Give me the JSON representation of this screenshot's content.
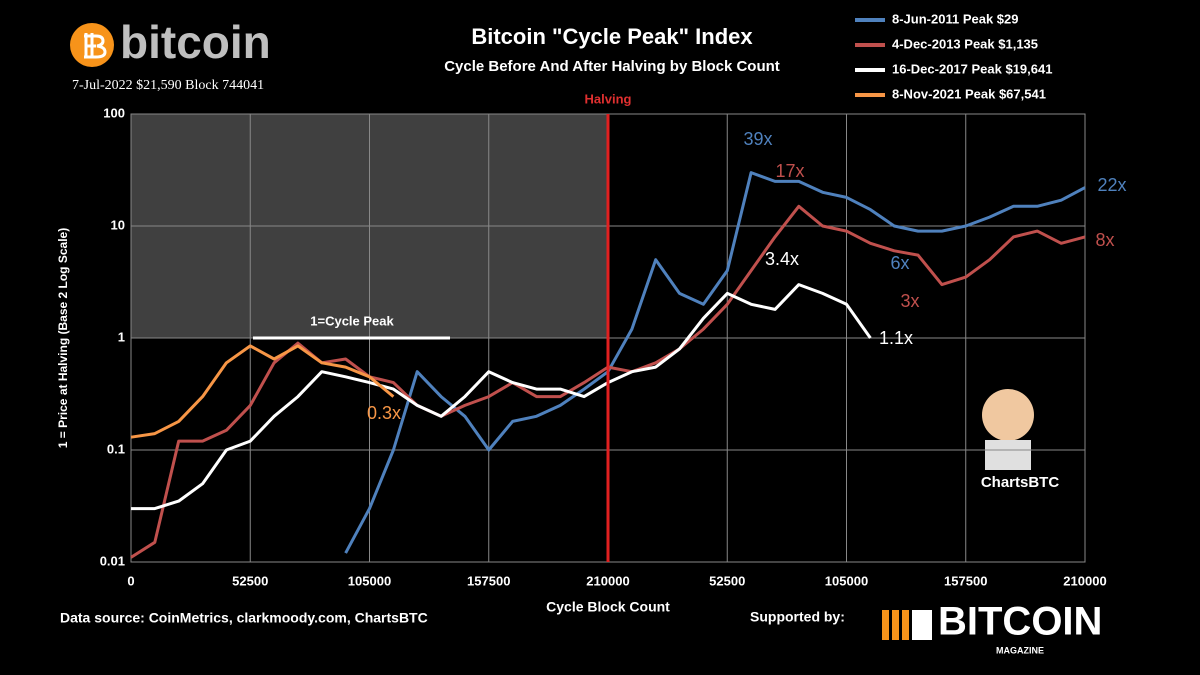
{
  "brand": {
    "name": "bitcoin",
    "subline": "7-Jul-2022 $21,590 Block 744041"
  },
  "chart_data": {
    "type": "line",
    "title": "Bitcoin \"Cycle Peak\" Index",
    "subtitle": "Cycle Before And After Halving by Block Count",
    "xlabel": "Cycle Block Count",
    "ylabel": "1 = Price at Halving (Base 2 Log Scale)",
    "log_y": true,
    "grid": true,
    "legend": "top-right",
    "halving_label": "Halving",
    "peak_label": "1=Cycle Peak",
    "annotations": [
      "39x",
      "17x",
      "22x",
      "6x",
      "3.4x",
      "3x",
      "8x",
      "1.1x",
      "0.3x"
    ],
    "xlim": [
      0,
      420000
    ],
    "ylim": [
      0.01,
      100
    ],
    "xticks": [
      0,
      52500,
      105000,
      157500,
      210000,
      {
        "value": 262500,
        "label": "52500"
      },
      {
        "value": 315000,
        "label": "105000"
      },
      {
        "value": 367500,
        "label": "157500"
      },
      {
        "value": 420000,
        "label": "210000"
      }
    ],
    "yticks": [
      0.01,
      0.1,
      1,
      10,
      100
    ],
    "x": [
      0,
      10500,
      21000,
      31500,
      42000,
      52500,
      63000,
      73500,
      84000,
      94500,
      105000,
      115500,
      126000,
      136500,
      147000,
      157500,
      168000,
      178500,
      189000,
      199500,
      210000,
      220500,
      231000,
      241500,
      252000,
      262500,
      273000,
      283500,
      294000,
      304500,
      315000,
      325500,
      336000,
      346500,
      357000,
      367500,
      378000,
      388500,
      399000,
      409500,
      420000
    ],
    "series": [
      {
        "name": "8-Jun-2011 Peak $29",
        "color": "#4f81bd",
        "values": [
          null,
          null,
          null,
          null,
          null,
          null,
          null,
          null,
          null,
          0.012,
          0.03,
          0.1,
          0.5,
          0.3,
          0.2,
          0.1,
          0.18,
          0.2,
          0.25,
          0.35,
          0.5,
          1.2,
          5,
          2.5,
          2,
          4,
          30,
          25,
          25,
          20,
          18,
          14,
          10,
          9,
          9,
          10,
          12,
          15,
          15,
          17,
          22
        ]
      },
      {
        "name": "4-Dec-2013 Peak $1,135",
        "color": "#c0504d",
        "values": [
          0.011,
          0.015,
          0.12,
          0.12,
          0.15,
          0.25,
          0.6,
          0.9,
          0.6,
          0.65,
          0.45,
          0.4,
          0.25,
          0.2,
          0.25,
          0.3,
          0.4,
          0.3,
          0.3,
          0.4,
          0.55,
          0.5,
          0.6,
          0.8,
          1.2,
          2,
          4,
          8,
          15,
          10,
          9,
          7,
          6,
          5.5,
          3,
          3.5,
          5,
          8,
          9,
          7,
          8
        ]
      },
      {
        "name": "16-Dec-2017 Peak $19,641",
        "color": "#ffffff",
        "values": [
          0.03,
          0.03,
          0.035,
          0.05,
          0.1,
          0.12,
          0.2,
          0.3,
          0.5,
          0.45,
          0.4,
          0.35,
          0.25,
          0.2,
          0.3,
          0.5,
          0.4,
          0.35,
          0.35,
          0.3,
          0.4,
          0.5,
          0.55,
          0.8,
          1.5,
          2.5,
          2,
          1.8,
          3,
          2.5,
          2,
          1,
          null,
          null,
          null,
          null,
          null,
          null,
          null,
          null,
          null
        ]
      },
      {
        "name": "8-Nov-2021 Peak $67,541",
        "color": "#f79646",
        "values": [
          0.13,
          0.14,
          0.18,
          0.3,
          0.6,
          0.85,
          0.65,
          0.85,
          0.6,
          0.55,
          0.45,
          0.3,
          null,
          null,
          null,
          null,
          null,
          null,
          null,
          null,
          null,
          null,
          null,
          null,
          null,
          null,
          null,
          null,
          null,
          null,
          null,
          null,
          null,
          null,
          null,
          null,
          null,
          null,
          null,
          null,
          null
        ]
      }
    ]
  },
  "footer": {
    "source": "Data source:  CoinMetrics, clarkmoody.com, ChartsBTC",
    "supported": "Supported by:",
    "magazine": "BITCOIN",
    "magazine_sub": "MAGAZINE",
    "mascot": "ChartsBTC"
  }
}
